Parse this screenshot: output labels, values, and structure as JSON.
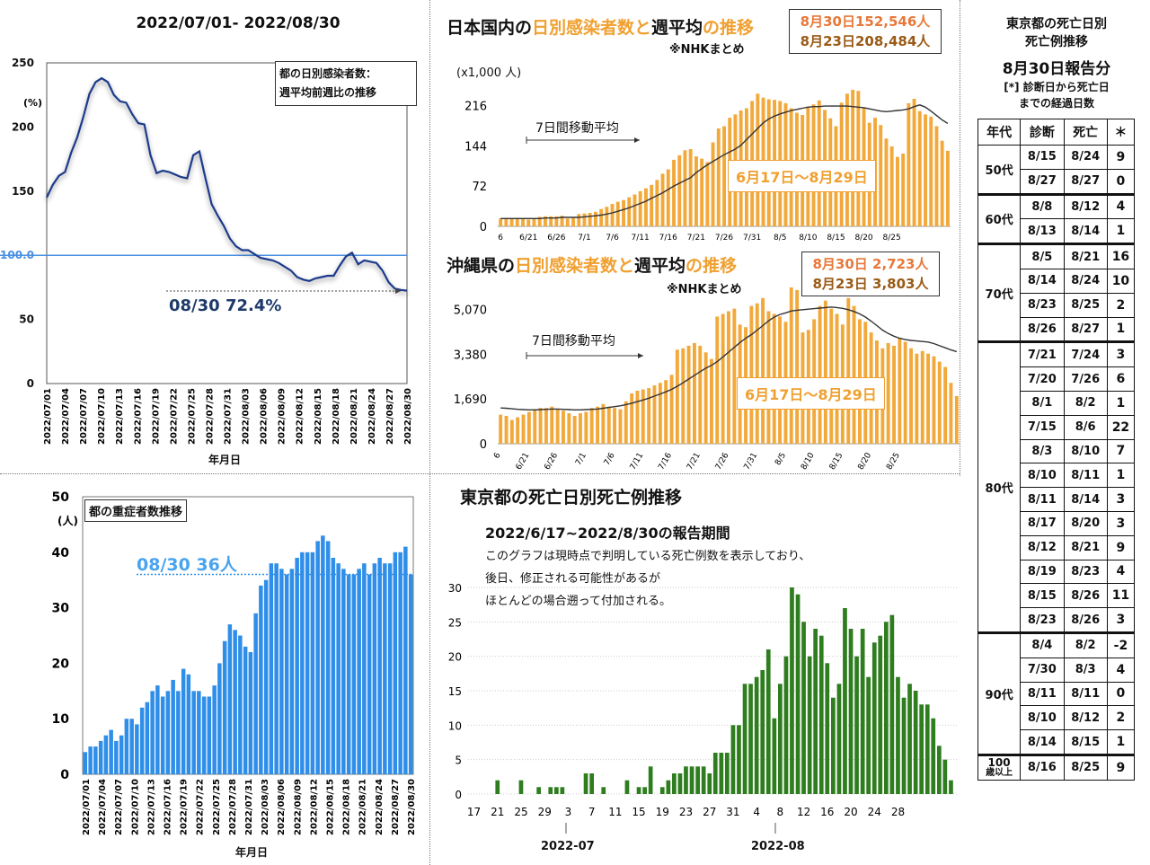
{
  "panel1": {
    "title": "2022/07/01- 2022/08/30",
    "legend_line1": "都の日別感染者数：",
    "legend_line2": "週平均前週比の推移",
    "annotation": "08/30 72.4%",
    "xlabel": "年月日"
  },
  "panel2": {
    "title_parts": [
      "日本国内の",
      "日別感染者数と",
      "週平均",
      "の推移"
    ],
    "subnote": "※NHKまとめ",
    "unit": "(x1,000 人)",
    "ma_label": "7日間移動平均",
    "range_label": "6月17日〜8月29日",
    "box_line1": "8月30日152,546人",
    "box_line2": "8月23日208,484人"
  },
  "panel3": {
    "title_parts": [
      "沖縄県の",
      "日別感染者数と",
      "週平均",
      "の推移"
    ],
    "subnote": "※NHKまとめ",
    "ma_label": "7日間移動平均",
    "range_label": "6月17日〜8月29日",
    "box_line1": "8月30日 2,723人",
    "box_line2": "8月23日 3,803人"
  },
  "panel4": {
    "title": "都の重症者数推移",
    "annotation": "08/30 36人",
    "xlabel": "年月日"
  },
  "panel5": {
    "heading": "東京都の死亡日別死亡例推移",
    "subheading": "2022/6/17~2022/8/30の報告期間",
    "note_line1": "このグラフは現時点で判明している死亡例数を表示しており、",
    "note_line2": "後日、修正される可能性があるが",
    "note_line3": "ほとんどの場合遡って付加される。",
    "month1": "2022-07",
    "month2": "2022-08"
  },
  "table": {
    "title_line1": "東京都の死亡日別",
    "title_line2": "死亡例推移",
    "date_label": "8月30日報告分",
    "note_line1": "[*] 診断日から死亡日",
    "note_line2": "までの経過日数",
    "headers": [
      "年代",
      "診断",
      "死亡",
      "＊"
    ],
    "groups": [
      {
        "age": "50代",
        "rows": [
          [
            "8/15",
            "8/24",
            "9"
          ],
          [
            "8/27",
            "8/27",
            "0"
          ]
        ]
      },
      {
        "age": "60代",
        "rows": [
          [
            "8/8",
            "8/12",
            "4"
          ],
          [
            "8/13",
            "8/14",
            "1"
          ]
        ]
      },
      {
        "age": "70代",
        "rows": [
          [
            "8/5",
            "8/21",
            "16"
          ],
          [
            "8/14",
            "8/24",
            "10"
          ],
          [
            "8/23",
            "8/25",
            "2"
          ],
          [
            "8/26",
            "8/27",
            "1"
          ]
        ]
      },
      {
        "age": "80代",
        "rows": [
          [
            "7/21",
            "7/24",
            "3"
          ],
          [
            "7/20",
            "7/26",
            "6"
          ],
          [
            "8/1",
            "8/2",
            "1"
          ],
          [
            "7/15",
            "8/6",
            "22"
          ],
          [
            "8/3",
            "8/10",
            "7"
          ],
          [
            "8/10",
            "8/11",
            "1"
          ],
          [
            "8/11",
            "8/14",
            "3"
          ],
          [
            "8/17",
            "8/20",
            "3"
          ],
          [
            "8/12",
            "8/21",
            "9"
          ],
          [
            "8/19",
            "8/23",
            "4"
          ],
          [
            "8/15",
            "8/26",
            "11"
          ],
          [
            "8/23",
            "8/26",
            "3"
          ]
        ]
      },
      {
        "age": "90代",
        "rows": [
          [
            "8/4",
            "8/2",
            "-2"
          ],
          [
            "7/30",
            "8/3",
            "4"
          ],
          [
            "8/11",
            "8/11",
            "0"
          ],
          [
            "8/10",
            "8/12",
            "2"
          ],
          [
            "8/14",
            "8/15",
            "1"
          ]
        ]
      },
      {
        "age": "100歳以上",
        "age_line1": "100",
        "age_line2": "歳以上",
        "rows": [
          [
            "8/16",
            "8/25",
            "9"
          ]
        ]
      }
    ]
  },
  "colors": {
    "orange": "#f2a93b",
    "orange_text": "#f0a030",
    "navy": "#1f3a8a",
    "blue_bar": "#2f8ee8",
    "green_bar": "#2e7d1e",
    "ref_line": "#4a90e2"
  },
  "chart_data": [
    {
      "id": "tokyo_weekly_ratio",
      "type": "line",
      "title": "都の日別感染者数：週平均前週比の推移",
      "xlabel": "年月日",
      "ylabel": "(%)",
      "ylim": [
        0,
        250
      ],
      "yticks": [
        0,
        50,
        100,
        150,
        200,
        250
      ],
      "ytick_labels": [
        "0",
        "50",
        "100.0",
        "150",
        "200",
        "250"
      ],
      "reference_line": 100,
      "x_tick_labels": [
        "2022/07/01",
        "2022/07/04",
        "2022/07/07",
        "2022/07/10",
        "2022/07/13",
        "2022/07/16",
        "2022/07/19",
        "2022/07/22",
        "2022/07/25",
        "2022/07/28",
        "2022/07/31",
        "2022/08/03",
        "2022/08/06",
        "2022/08/09",
        "2022/08/12",
        "2022/08/15",
        "2022/08/18",
        "2022/08/21",
        "2022/08/24",
        "2022/08/27",
        "2022/08/30"
      ],
      "values": [
        145,
        155,
        162,
        165,
        180,
        192,
        208,
        226,
        235,
        238,
        235,
        225,
        220,
        219,
        210,
        203,
        202,
        178,
        164,
        166,
        165,
        163,
        161,
        160,
        178,
        181,
        160,
        140,
        131,
        123,
        113,
        107,
        104,
        104,
        101,
        98,
        97,
        96,
        94,
        91,
        88,
        83,
        81,
        80,
        82,
        83,
        84,
        84,
        92,
        99,
        102,
        93,
        96,
        95,
        94,
        88,
        79,
        74,
        73,
        72.4
      ],
      "annotation": "08/30 72.4%"
    },
    {
      "id": "japan_daily_cases",
      "type": "bar",
      "title": "日本国内の日別感染者数と週平均の推移",
      "unit": "(x1,000 人)",
      "ylim": [
        0,
        252
      ],
      "yticks": [
        0,
        72,
        144,
        216
      ],
      "x_tick_labels": [
        "6",
        "6/21",
        "6/26",
        "7/1",
        "7/6",
        "7/11",
        "7/16",
        "7/21",
        "7/26",
        "7/31",
        "8/5",
        "8/10",
        "8/15",
        "8/20",
        "8/25"
      ],
      "values": [
        14,
        15,
        15,
        15,
        13,
        12,
        13,
        17,
        18,
        18,
        18,
        19,
        14,
        15,
        22,
        23,
        24,
        26,
        31,
        35,
        40,
        44,
        47,
        52,
        57,
        63,
        68,
        74,
        83,
        94,
        102,
        119,
        127,
        136,
        138,
        125,
        121,
        115,
        150,
        175,
        179,
        194,
        200,
        207,
        211,
        224,
        237,
        230,
        227,
        226,
        224,
        220,
        211,
        203,
        199,
        214,
        218,
        225,
        208,
        193,
        179,
        221,
        237,
        244,
        242,
        212,
        185,
        194,
        181,
        157,
        143,
        124,
        130,
        220,
        228,
        206,
        200,
        196,
        179,
        153,
        135
      ],
      "moving_avg": [
        14,
        14,
        14,
        14,
        14,
        14,
        14,
        14,
        15,
        15,
        15,
        16,
        16,
        16,
        16,
        17,
        18,
        19,
        20,
        22,
        24,
        27,
        30,
        33,
        37,
        41,
        45,
        50,
        55,
        60,
        66,
        72,
        77,
        82,
        87,
        96,
        103,
        110,
        116,
        122,
        128,
        133,
        138,
        145,
        155,
        165,
        175,
        185,
        192,
        197,
        201,
        204,
        207,
        209,
        211,
        213,
        214,
        214,
        215,
        215,
        215,
        215,
        215,
        214,
        213,
        212,
        210,
        208,
        206,
        205,
        206,
        207,
        208,
        210,
        214,
        217,
        213,
        206,
        198,
        190,
        184
      ],
      "series_names": [
        "日別感染者数",
        "7日間移動平均"
      ]
    },
    {
      "id": "okinawa_daily_cases",
      "type": "bar",
      "title": "沖縄県の日別感染者数と週平均の推移",
      "ylim": [
        0,
        5900
      ],
      "yticks": [
        0,
        1690,
        3380,
        5070
      ],
      "ytick_labels": [
        "0",
        "1,690",
        "3,380",
        "5,070"
      ],
      "x_tick_labels": [
        "6",
        "6/21",
        "6/26",
        "7/1",
        "7/6",
        "7/11",
        "7/16",
        "7/21",
        "7/26",
        "7/31",
        "8/5",
        "8/10",
        "8/15",
        "8/20",
        "8/25"
      ],
      "values": [
        1100,
        1050,
        900,
        1000,
        1100,
        1200,
        1300,
        1350,
        1350,
        1400,
        1300,
        1250,
        1150,
        1050,
        1150,
        1200,
        1350,
        1400,
        1500,
        1400,
        1350,
        1300,
        1600,
        1900,
        2000,
        2050,
        2100,
        2200,
        2300,
        2400,
        2600,
        3550,
        3600,
        3700,
        3800,
        3700,
        3450,
        3200,
        4800,
        4900,
        5000,
        5100,
        4500,
        4400,
        5200,
        5300,
        5500,
        5000,
        4900,
        4800,
        4600,
        5900,
        5800,
        4200,
        4300,
        4700,
        5200,
        5400,
        5100,
        4900,
        4500,
        5500,
        5200,
        4700,
        4600,
        4200,
        3900,
        3600,
        3800,
        3700,
        4000,
        3850,
        3600,
        3400,
        3500,
        3400,
        3300,
        3100,
        2900,
        2300,
        1800
      ],
      "moving_avg": [
        1350,
        1340,
        1320,
        1300,
        1290,
        1280,
        1280,
        1290,
        1300,
        1310,
        1310,
        1300,
        1290,
        1280,
        1280,
        1290,
        1300,
        1310,
        1340,
        1370,
        1400,
        1430,
        1480,
        1530,
        1590,
        1650,
        1720,
        1800,
        1880,
        1960,
        2050,
        2170,
        2300,
        2440,
        2580,
        2720,
        2850,
        2960,
        3100,
        3280,
        3460,
        3640,
        3820,
        3980,
        4120,
        4290,
        4460,
        4640,
        4780,
        4880,
        4940,
        5010,
        5040,
        5060,
        5080,
        5100,
        5120,
        5140,
        5160,
        5140,
        5110,
        5060,
        4990,
        4900,
        4780,
        4630,
        4460,
        4290,
        4160,
        4060,
        3980,
        3930,
        3900,
        3880,
        3860,
        3840,
        3780,
        3700,
        3620,
        3540,
        3480
      ],
      "series_names": [
        "日別感染者数",
        "7日間移動平均"
      ]
    },
    {
      "id": "tokyo_severe",
      "type": "bar",
      "title": "都の重症者数推移",
      "xlabel": "年月日",
      "ylabel": "(人)",
      "ylim": [
        0,
        50
      ],
      "yticks": [
        0,
        10,
        20,
        30,
        40,
        50
      ],
      "x_tick_labels": [
        "2022/07/01",
        "2022/07/04",
        "2022/07/07",
        "2022/07/10",
        "2022/07/13",
        "2022/07/16",
        "2022/07/19",
        "2022/07/22",
        "2022/07/25",
        "2022/07/28",
        "2022/07/31",
        "2022/08/03",
        "2022/08/06",
        "2022/08/09",
        "2022/08/12",
        "2022/08/15",
        "2022/08/18",
        "2022/08/21",
        "2022/08/24",
        "2022/08/27",
        "2022/08/30"
      ],
      "values": [
        4,
        5,
        5,
        6,
        7,
        8,
        6,
        7,
        10,
        10,
        9,
        12,
        13,
        15,
        16,
        14,
        15,
        17,
        15,
        19,
        18,
        15,
        15,
        14,
        14,
        16,
        20,
        24,
        27,
        26,
        25,
        23,
        22,
        29,
        34,
        35,
        38,
        38,
        37,
        36,
        37,
        39,
        40,
        40,
        40,
        42,
        43,
        42,
        39,
        38,
        37,
        36,
        36,
        37,
        38,
        36,
        38,
        39,
        38,
        38,
        40,
        40,
        41,
        36
      ],
      "annotation": "08/30 36人"
    },
    {
      "id": "tokyo_deaths_by_date",
      "type": "bar",
      "title": "東京都の死亡日別死亡例推移",
      "ylim": [
        0,
        30
      ],
      "yticks": [
        0,
        5,
        10,
        15,
        20,
        25,
        30
      ],
      "x_tick_labels": [
        "17",
        "21",
        "25",
        "29",
        "3",
        "7",
        "11",
        "15",
        "19",
        "23",
        "27",
        "31",
        "4",
        "8",
        "12",
        "16",
        "20",
        "24",
        "28"
      ],
      "month_labels": [
        "2022-07",
        "2022-08"
      ],
      "first_day": "2022-06-17",
      "values": [
        0,
        0,
        0,
        0,
        2,
        0,
        0,
        0,
        2,
        0,
        0,
        1,
        0,
        1,
        1,
        1,
        0,
        0,
        0,
        3,
        3,
        0,
        1,
        0,
        0,
        0,
        2,
        0,
        1,
        1,
        4,
        0,
        1,
        2,
        3,
        3,
        4,
        4,
        4,
        4,
        3,
        6,
        6,
        6,
        10,
        10,
        16,
        16,
        17,
        18,
        21,
        11,
        16,
        20,
        30,
        29,
        25,
        20,
        24,
        23,
        19,
        14,
        16,
        27,
        24,
        20,
        24,
        17,
        22,
        23,
        25,
        26,
        17,
        14,
        16,
        15,
        13,
        13,
        11,
        7,
        5,
        2
      ]
    }
  ]
}
